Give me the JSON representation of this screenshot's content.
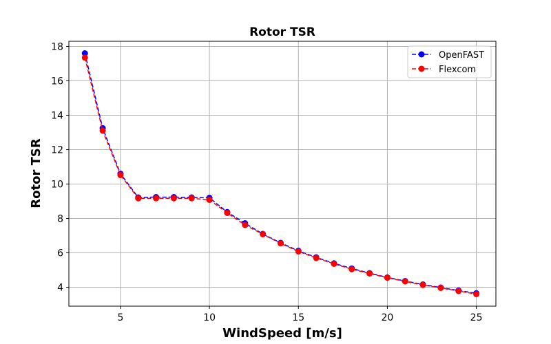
{
  "chart_data": {
    "type": "line",
    "title": "Rotor TSR",
    "xlabel": "WindSpeed [m/s]",
    "ylabel": "Rotor TSR",
    "xlim": [
      2.1,
      26.1
    ],
    "ylim": [
      2.9,
      18.3
    ],
    "xticks": [
      5,
      10,
      15,
      20,
      25
    ],
    "yticks": [
      4,
      6,
      8,
      10,
      12,
      14,
      16,
      18
    ],
    "grid": true,
    "legend_position": "top-right",
    "x": [
      3,
      4,
      5,
      6,
      7,
      8,
      9,
      10,
      11,
      12,
      13,
      14,
      15,
      16,
      17,
      18,
      19,
      20,
      21,
      22,
      23,
      24,
      25
    ],
    "series": [
      {
        "name": "OpenFAST",
        "color": "#0000ff",
        "line_style": "dashed",
        "marker": "circle",
        "values": [
          17.6,
          13.25,
          10.6,
          9.22,
          9.24,
          9.24,
          9.22,
          9.2,
          8.37,
          7.72,
          7.1,
          6.58,
          6.12,
          5.74,
          5.39,
          5.09,
          4.82,
          4.57,
          4.36,
          4.16,
          3.98,
          3.81,
          3.65
        ]
      },
      {
        "name": "Flexcom",
        "color": "#ff0000",
        "line_style": "dashed",
        "marker": "circle",
        "values": [
          17.35,
          13.1,
          10.52,
          9.17,
          9.17,
          9.17,
          9.17,
          9.08,
          8.32,
          7.62,
          7.08,
          6.55,
          6.08,
          5.7,
          5.36,
          5.05,
          4.8,
          4.55,
          4.34,
          4.13,
          3.96,
          3.78,
          3.6
        ]
      }
    ]
  }
}
